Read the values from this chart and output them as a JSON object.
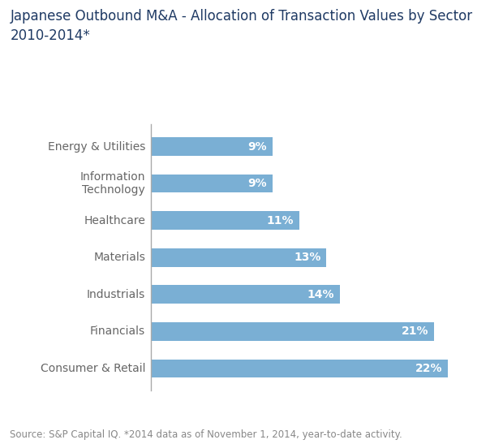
{
  "title": "Japanese Outbound M&A - Allocation of Transaction Values by Sector\n2010-2014*",
  "categories": [
    "Consumer & Retail",
    "Financials",
    "Industrials",
    "Materials",
    "Healthcare",
    "Information\nTechnology",
    "Energy & Utilities"
  ],
  "values": [
    22,
    21,
    14,
    13,
    11,
    9,
    9
  ],
  "bar_color": "#7AAFD4",
  "bar_label_color": "#FFFFFF",
  "bar_label_fontsize": 10,
  "title_color": "#1F3A64",
  "title_fontsize": 12,
  "ylabel_color": "#666666",
  "ylabel_fontsize": 10,
  "source_text": "Source: S&P Capital IQ. *2014 data as of November 1, 2014, year-to-date activity.",
  "source_fontsize": 8.5,
  "source_color": "#888888",
  "background_color": "#FFFFFF",
  "xlim": [
    0,
    25
  ],
  "bar_height": 0.5,
  "spine_color": "#AAAAAA"
}
